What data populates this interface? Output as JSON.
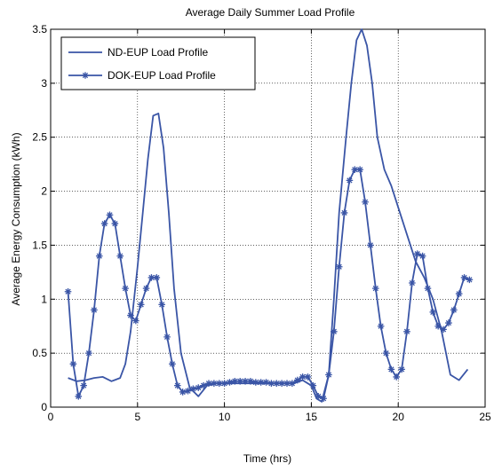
{
  "chart_data": {
    "type": "line",
    "title": "Average Daily Summer Load Profile",
    "xlabel": "Time (hrs)",
    "ylabel": "Average Energy Consumption (kWh)",
    "xlim": [
      0,
      25
    ],
    "ylim": [
      0,
      3.5
    ],
    "xticks": [
      0,
      5,
      10,
      15,
      20,
      25
    ],
    "yticks": [
      0,
      0.5,
      1,
      1.5,
      2,
      2.5,
      3,
      3.5
    ],
    "xtick_labels": [
      "0",
      "5",
      "10",
      "15",
      "20",
      "25"
    ],
    "ytick_labels": [
      "0",
      "0.5",
      "1",
      "1.5",
      "2",
      "2.5",
      "3",
      "3.5"
    ],
    "grid": true,
    "legend_position": "top-left",
    "line_color": "#3a55a6",
    "series": [
      {
        "name": "ND-EUP Load Profile",
        "marker": "none",
        "x": [
          1.0,
          1.5,
          2.0,
          2.5,
          3.0,
          3.5,
          4.0,
          4.3,
          4.6,
          5.0,
          5.3,
          5.6,
          5.9,
          6.2,
          6.5,
          6.8,
          7.1,
          7.5,
          8.0,
          8.5,
          9.0,
          9.5,
          10.0,
          10.5,
          11.0,
          11.5,
          12.0,
          12.5,
          13.0,
          13.5,
          14.0,
          14.5,
          15.0,
          15.3,
          15.6,
          16.0,
          16.3,
          16.6,
          17.0,
          17.3,
          17.6,
          17.9,
          18.2,
          18.5,
          18.8,
          19.2,
          19.6,
          20.0,
          20.5,
          21.0,
          21.5,
          22.0,
          22.5,
          23.0,
          23.5,
          24.0
        ],
        "y": [
          0.27,
          0.24,
          0.25,
          0.27,
          0.28,
          0.24,
          0.27,
          0.4,
          0.7,
          1.3,
          1.8,
          2.3,
          2.7,
          2.72,
          2.4,
          1.8,
          1.1,
          0.5,
          0.18,
          0.1,
          0.2,
          0.22,
          0.22,
          0.22,
          0.22,
          0.22,
          0.22,
          0.22,
          0.22,
          0.22,
          0.22,
          0.25,
          0.2,
          0.08,
          0.05,
          0.3,
          1.0,
          1.8,
          2.5,
          3.0,
          3.4,
          3.5,
          3.35,
          3.0,
          2.5,
          2.2,
          2.05,
          1.85,
          1.6,
          1.35,
          1.2,
          1.0,
          0.7,
          0.3,
          0.25,
          0.35
        ]
      },
      {
        "name": "DOK-EUP Load Profile",
        "marker": "star",
        "x": [
          1.0,
          1.3,
          1.6,
          1.9,
          2.2,
          2.5,
          2.8,
          3.1,
          3.4,
          3.7,
          4.0,
          4.3,
          4.6,
          4.9,
          5.2,
          5.5,
          5.8,
          6.1,
          6.4,
          6.7,
          7.0,
          7.3,
          7.6,
          7.9,
          8.2,
          8.5,
          8.8,
          9.1,
          9.4,
          9.7,
          10.0,
          10.3,
          10.6,
          10.9,
          11.2,
          11.5,
          11.8,
          12.1,
          12.4,
          12.7,
          13.0,
          13.3,
          13.6,
          13.9,
          14.2,
          14.5,
          14.8,
          15.1,
          15.4,
          15.7,
          16.0,
          16.3,
          16.6,
          16.9,
          17.2,
          17.5,
          17.8,
          18.1,
          18.4,
          18.7,
          19.0,
          19.3,
          19.6,
          19.9,
          20.2,
          20.5,
          20.8,
          21.1,
          21.4,
          21.7,
          22.0,
          22.3,
          22.6,
          22.9,
          23.2,
          23.5,
          23.8,
          24.1
        ],
        "y": [
          1.07,
          0.4,
          0.1,
          0.2,
          0.5,
          0.9,
          1.4,
          1.7,
          1.78,
          1.7,
          1.4,
          1.1,
          0.85,
          0.8,
          0.95,
          1.1,
          1.2,
          1.2,
          0.95,
          0.65,
          0.4,
          0.2,
          0.14,
          0.15,
          0.17,
          0.18,
          0.2,
          0.22,
          0.22,
          0.22,
          0.22,
          0.23,
          0.24,
          0.24,
          0.24,
          0.24,
          0.23,
          0.23,
          0.23,
          0.22,
          0.22,
          0.22,
          0.22,
          0.22,
          0.25,
          0.28,
          0.28,
          0.2,
          0.1,
          0.08,
          0.3,
          0.7,
          1.3,
          1.8,
          2.1,
          2.2,
          2.2,
          1.9,
          1.5,
          1.1,
          0.75,
          0.5,
          0.35,
          0.28,
          0.35,
          0.7,
          1.15,
          1.42,
          1.4,
          1.1,
          0.88,
          0.75,
          0.72,
          0.78,
          0.9,
          1.05,
          1.2,
          1.18
        ]
      }
    ]
  }
}
